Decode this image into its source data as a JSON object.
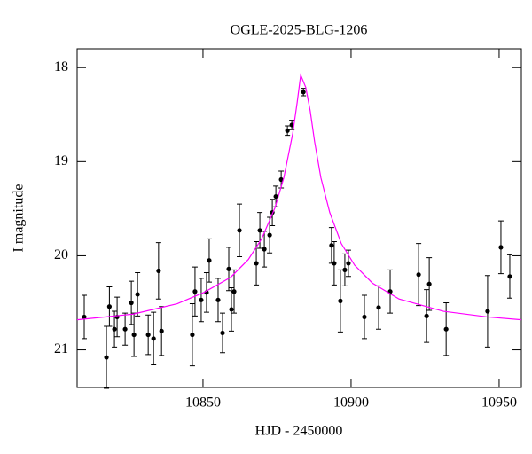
{
  "chart_data": {
    "type": "scatter",
    "title": "OGLE-2025-BLG-1206",
    "xlabel": "HJD - 2450000",
    "ylabel": "I magnitude",
    "xlim": [
      10807.5,
      10957.5
    ],
    "ylim": [
      21.4,
      17.8
    ],
    "xticks": [
      10850,
      10900,
      10950
    ],
    "yticks": [
      18,
      19,
      20,
      21
    ],
    "series": [
      {
        "type": "errorbar",
        "color": "#000000",
        "x": [
          10809.9,
          10817.4,
          10818.4,
          10820.1,
          10821.0,
          10823.7,
          10825.8,
          10826.7,
          10827.9,
          10831.5,
          10833.3,
          10835.0,
          10836.0,
          10846.4,
          10847.3,
          10849.4,
          10851.2,
          10852.1,
          10855.1,
          10856.6,
          10858.7,
          10859.6,
          10860.5,
          10862.3,
          10868.0,
          10869.2,
          10870.7,
          10872.5,
          10873.4,
          10874.6,
          10876.4,
          10878.5,
          10880.0,
          10883.9,
          10893.4,
          10894.3,
          10896.4,
          10897.9,
          10899.1,
          10904.5,
          10909.3,
          10913.2,
          10922.8,
          10925.5,
          10926.4,
          10932.1,
          10946.1,
          10950.6,
          10953.6
        ],
        "values": [
          20.65,
          21.08,
          20.54,
          20.78,
          20.65,
          20.78,
          20.5,
          20.84,
          20.41,
          20.84,
          20.88,
          20.16,
          20.8,
          20.84,
          20.38,
          20.47,
          20.39,
          20.05,
          20.47,
          20.82,
          20.14,
          20.57,
          20.38,
          19.73,
          20.08,
          19.73,
          19.93,
          19.78,
          19.54,
          19.37,
          19.19,
          18.67,
          18.61,
          18.26,
          19.89,
          20.08,
          20.48,
          20.15,
          20.08,
          20.65,
          20.55,
          20.38,
          20.2,
          20.64,
          20.3,
          20.78,
          20.59,
          19.91,
          20.22
        ],
        "errors": [
          0.23,
          0.33,
          0.21,
          0.19,
          0.21,
          0.17,
          0.23,
          0.23,
          0.23,
          0.21,
          0.28,
          0.3,
          0.26,
          0.33,
          0.26,
          0.23,
          0.21,
          0.23,
          0.23,
          0.21,
          0.23,
          0.23,
          0.23,
          0.28,
          0.23,
          0.19,
          0.19,
          0.19,
          0.14,
          0.11,
          0.09,
          0.05,
          0.05,
          0.04,
          0.19,
          0.23,
          0.33,
          0.17,
          0.14,
          0.23,
          0.23,
          0.23,
          0.33,
          0.28,
          0.28,
          0.28,
          0.38,
          0.28,
          0.23
        ]
      },
      {
        "type": "line",
        "color": "#ff00ff",
        "x": [
          10807.5,
          10826.4,
          10841.3,
          10850.3,
          10859.3,
          10865.3,
          10869.8,
          10874.3,
          10877.3,
          10880.3,
          10881.8,
          10882.7,
          10883.0,
          10884.7,
          10886.2,
          10887.7,
          10889.8,
          10892.8,
          10896.7,
          10901.2,
          10907.2,
          10916.2,
          10931.2,
          10946.1,
          10957.5
        ],
        "values": [
          20.68,
          20.62,
          20.51,
          20.39,
          20.23,
          20.04,
          19.82,
          19.49,
          19.17,
          18.7,
          18.37,
          18.15,
          18.08,
          18.21,
          18.46,
          18.79,
          19.17,
          19.54,
          19.87,
          20.1,
          20.29,
          20.46,
          20.59,
          20.65,
          20.68
        ]
      }
    ]
  }
}
